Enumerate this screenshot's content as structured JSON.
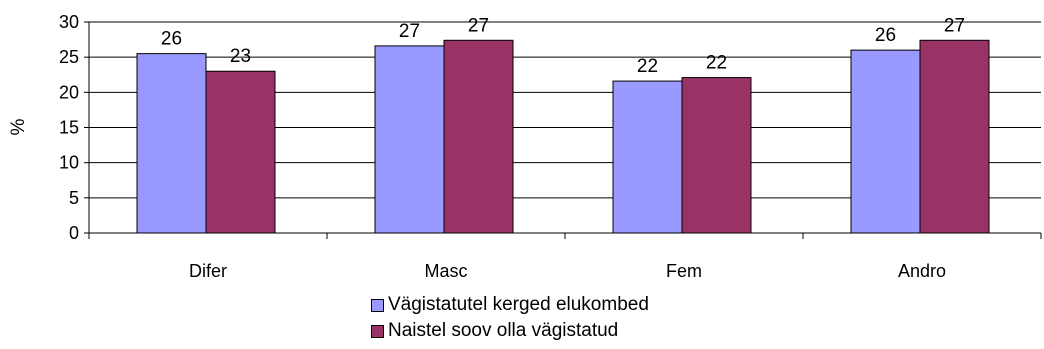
{
  "chart_data": {
    "type": "bar",
    "categories": [
      "Difer",
      "Masc",
      "Fem",
      "Andro"
    ],
    "series": [
      {
        "name": "Vägistatutel kerged elukombed",
        "values": [
          25.5,
          26.6,
          21.6,
          26.0
        ],
        "labels": [
          "26",
          "27",
          "22",
          "26"
        ],
        "color": "#9999ff"
      },
      {
        "name": "Naistel soov olla vägistatud",
        "values": [
          23.0,
          27.4,
          22.1,
          27.4
        ],
        "labels": [
          "23",
          "27",
          "22",
          "27"
        ],
        "color": "#993366"
      }
    ],
    "ylabel": "%",
    "ylim": [
      0,
      30
    ],
    "yticks": [
      0,
      5,
      10,
      15,
      20,
      25,
      30
    ],
    "grid": true,
    "legend": "bottom"
  }
}
